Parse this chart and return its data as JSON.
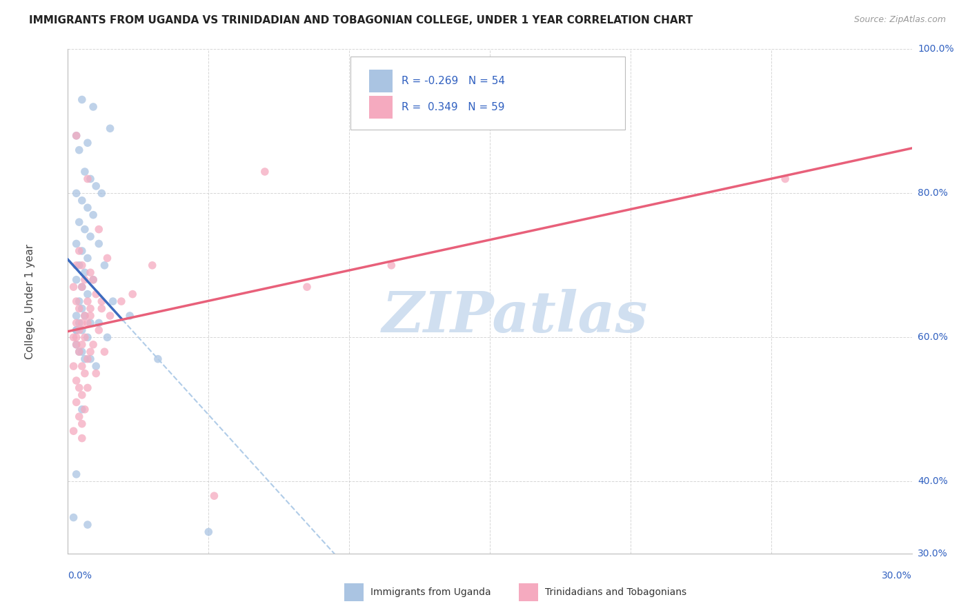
{
  "title": "IMMIGRANTS FROM UGANDA VS TRINIDADIAN AND TOBAGONIAN COLLEGE, UNDER 1 YEAR CORRELATION CHART",
  "source": "Source: ZipAtlas.com",
  "ylabel_label": "College, Under 1 year",
  "legend_label1": "Immigrants from Uganda",
  "legend_label2": "Trinidadians and Tobagonians",
  "r1": "-0.269",
  "n1": "54",
  "r2": "0.349",
  "n2": "59",
  "color_blue": "#aac4e2",
  "color_pink": "#f5aabf",
  "color_blue_line": "#3d6bbf",
  "color_pink_line": "#e8607a",
  "color_dashed": "#b0cce8",
  "color_axis_label": "#3060c0",
  "color_watermark": "#d0dff0",
  "xmin": 0.0,
  "xmax": 30.0,
  "ymin": 30.0,
  "ymax": 100.0,
  "blue_points_x": [
    0.5,
    0.9,
    1.5,
    0.3,
    0.7,
    0.4,
    0.6,
    0.8,
    1.0,
    1.2,
    0.3,
    0.5,
    0.7,
    0.9,
    0.4,
    0.6,
    0.8,
    1.1,
    0.3,
    0.5,
    0.7,
    1.3,
    0.4,
    0.6,
    0.9,
    0.3,
    0.5,
    0.7,
    0.4,
    1.6,
    0.5,
    0.6,
    0.3,
    0.8,
    1.1,
    0.4,
    0.5,
    0.3,
    2.2,
    0.3,
    0.7,
    1.4,
    0.3,
    0.5,
    0.4,
    3.2,
    0.6,
    0.8,
    1.0,
    0.3,
    0.5,
    0.2,
    0.7,
    5.0
  ],
  "blue_points_y": [
    93,
    92,
    89,
    88,
    87,
    86,
    83,
    82,
    81,
    80,
    80,
    79,
    78,
    77,
    76,
    75,
    74,
    73,
    73,
    72,
    71,
    70,
    70,
    69,
    68,
    68,
    67,
    66,
    65,
    65,
    64,
    63,
    63,
    62,
    62,
    62,
    61,
    61,
    63,
    61,
    60,
    60,
    59,
    58,
    58,
    57,
    57,
    57,
    56,
    41,
    50,
    35,
    34,
    33
  ],
  "pink_points_x": [
    0.3,
    0.7,
    1.1,
    0.4,
    1.4,
    0.5,
    0.3,
    0.8,
    0.9,
    0.6,
    0.2,
    0.5,
    1.0,
    0.7,
    0.3,
    1.2,
    0.4,
    0.6,
    0.8,
    1.5,
    0.3,
    0.5,
    0.7,
    1.1,
    0.4,
    0.2,
    0.6,
    0.9,
    0.3,
    0.5,
    0.8,
    1.3,
    0.4,
    0.7,
    0.2,
    2.3,
    0.5,
    0.6,
    1.0,
    0.3,
    0.4,
    0.7,
    1.9,
    0.5,
    1.2,
    0.3,
    0.6,
    3.0,
    0.4,
    7.0,
    0.5,
    0.2,
    0.8,
    0.3,
    5.2,
    0.5,
    8.5,
    11.5,
    25.5
  ],
  "pink_points_y": [
    88,
    82,
    75,
    72,
    71,
    70,
    70,
    69,
    68,
    68,
    67,
    67,
    66,
    65,
    65,
    64,
    64,
    63,
    63,
    63,
    62,
    62,
    62,
    61,
    61,
    60,
    60,
    59,
    59,
    59,
    58,
    58,
    58,
    57,
    56,
    66,
    56,
    55,
    55,
    54,
    53,
    53,
    65,
    52,
    65,
    51,
    50,
    70,
    49,
    83,
    48,
    47,
    64,
    60,
    38,
    46,
    67,
    70,
    82
  ]
}
